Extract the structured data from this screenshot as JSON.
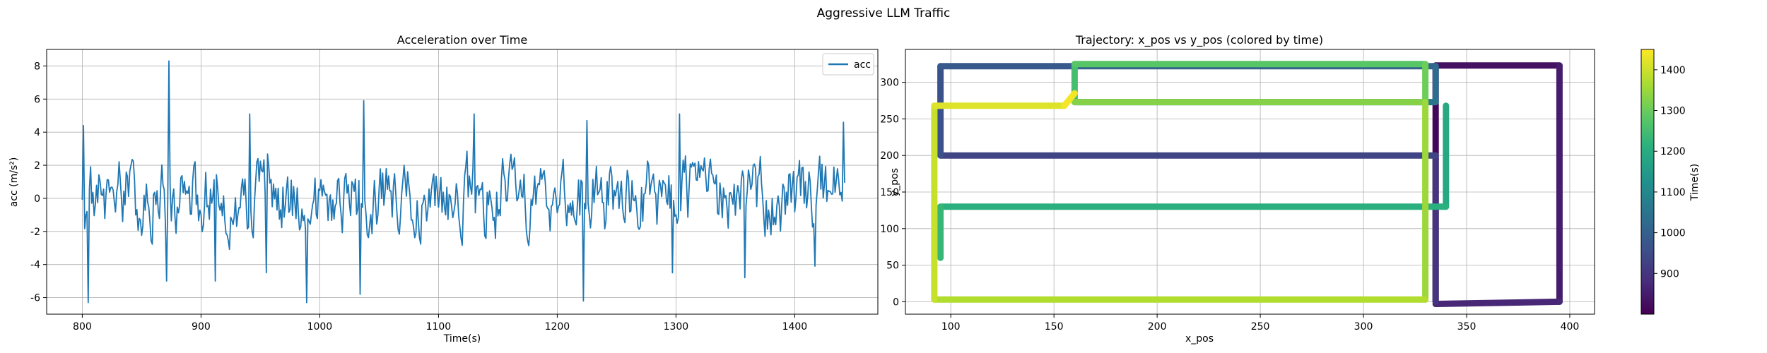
{
  "figure": {
    "title": "Aggressive LLM Traffic"
  },
  "chart_data": [
    {
      "type": "line",
      "title": "Acceleration over Time",
      "xlabel": "Time(s)",
      "ylabel": "acc (m/s²)",
      "xlim": [
        770,
        1470
      ],
      "ylim": [
        -7,
        9
      ],
      "xticks": [
        800,
        900,
        1000,
        1100,
        1200,
        1300,
        1400
      ],
      "yticks": [
        -6,
        -4,
        -2,
        0,
        2,
        4,
        6,
        8
      ],
      "grid": true,
      "legend": "top-right",
      "series": [
        {
          "name": "acc",
          "color": "#1f77b4",
          "sample_interval_s": 1,
          "x_start": 800,
          "x_end": 1442,
          "value_range": [
            -6.3,
            8.3
          ],
          "spikes": [
            {
              "x": 801,
              "y": 4.4
            },
            {
              "x": 805,
              "y": -6.3
            },
            {
              "x": 873,
              "y": 8.3
            },
            {
              "x": 871,
              "y": -5.0
            },
            {
              "x": 912,
              "y": -5.0
            },
            {
              "x": 941,
              "y": 5.1
            },
            {
              "x": 955,
              "y": -4.5
            },
            {
              "x": 989,
              "y": -6.3
            },
            {
              "x": 1037,
              "y": 5.9
            },
            {
              "x": 1034,
              "y": -5.8
            },
            {
              "x": 1130,
              "y": 5.1
            },
            {
              "x": 1222,
              "y": -6.2
            },
            {
              "x": 1225,
              "y": 4.7
            },
            {
              "x": 1303,
              "y": 5.1
            },
            {
              "x": 1297,
              "y": -4.5
            },
            {
              "x": 1358,
              "y": -4.8
            },
            {
              "x": 1417,
              "y": -4.1
            },
            {
              "x": 1441,
              "y": 4.6
            }
          ]
        }
      ]
    },
    {
      "type": "scatter",
      "title": "Trajectory: x_pos vs y_pos (colored by time)",
      "xlabel": "x_pos",
      "ylabel": "y_pos",
      "xlim": [
        78,
        412
      ],
      "ylim": [
        -17,
        345
      ],
      "xticks": [
        100,
        150,
        200,
        250,
        300,
        350,
        400
      ],
      "yticks": [
        0,
        50,
        100,
        150,
        200,
        250,
        300
      ],
      "grid": true,
      "colorbar": {
        "label": "Time(s)",
        "range": [
          800,
          1450
        ],
        "ticks": [
          900,
          1000,
          1100,
          1200,
          1300,
          1400
        ],
        "colormap": "viridis"
      },
      "paths": [
        {
          "t0": 800,
          "t1": 880,
          "points": [
            [
              335,
              0
            ],
            [
              335,
              323
            ],
            [
              395,
              323
            ],
            [
              395,
              0
            ],
            [
              335,
              -3
            ]
          ]
        },
        {
          "t0": 880,
          "t1": 950,
          "points": [
            [
              335,
              0
            ],
            [
              335,
              200
            ],
            [
              95,
              200
            ]
          ]
        },
        {
          "t0": 950,
          "t1": 1060,
          "points": [
            [
              95,
              200
            ],
            [
              95,
              322
            ],
            [
              160,
              322
            ],
            [
              335,
              322
            ],
            [
              335,
              273
            ],
            [
              160,
              273
            ]
          ]
        },
        {
          "t0": 1180,
          "t1": 1240,
          "points": [
            [
              340,
              268
            ],
            [
              340,
              130
            ],
            [
              95,
              130
            ],
            [
              95,
              60
            ]
          ]
        },
        {
          "t0": 1240,
          "t1": 1340,
          "points": [
            [
              160,
              273
            ],
            [
              160,
              325
            ],
            [
              330,
              325
            ],
            [
              330,
              273
            ],
            [
              160,
              273
            ]
          ]
        },
        {
          "t0": 1340,
          "t1": 1450,
          "points": [
            [
              330,
              273
            ],
            [
              330,
              3
            ],
            [
              92,
              3
            ],
            [
              92,
              268
            ],
            [
              155,
              268
            ],
            [
              160,
              285
            ]
          ]
        }
      ]
    }
  ]
}
